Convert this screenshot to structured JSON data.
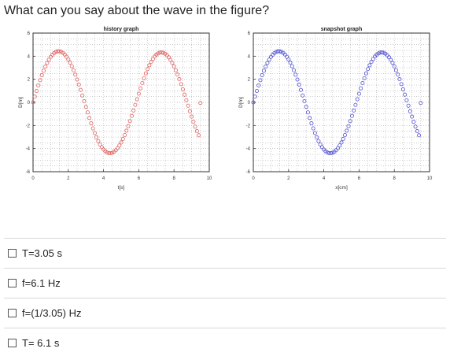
{
  "question": "What can you say about the wave in the figure?",
  "colors": {
    "history": "#e06060",
    "snapshot": "#5050d0"
  },
  "chart_data": [
    {
      "type": "scatter",
      "title": "history graph",
      "xlabel": "t[s]",
      "ylabel": "D[m]",
      "xlim": [
        0,
        10
      ],
      "ylim": [
        -6,
        6
      ],
      "xticks": [
        "0",
        "2",
        "4",
        "6",
        "8",
        "10"
      ],
      "yticks": [
        "6",
        "4",
        "2",
        "0",
        "-2",
        "-4",
        "-6"
      ],
      "grid": true,
      "series": [
        {
          "color": "#e06060",
          "x": [
            0,
            0.1,
            0.2,
            0.3,
            0.4,
            0.5,
            0.6,
            0.7,
            0.8,
            0.9,
            1,
            1.1,
            1.2,
            1.3,
            1.4,
            1.5,
            1.6,
            1.7,
            1.8,
            1.9,
            2,
            2.1,
            2.2,
            2.3,
            2.4,
            2.5,
            2.6,
            2.7,
            2.8,
            2.9,
            3,
            3.1,
            3.2,
            3.3,
            3.4,
            3.5,
            3.6,
            3.7,
            3.8,
            3.9,
            4,
            4.1,
            4.2,
            4.3,
            4.4,
            4.5,
            4.6,
            4.7,
            4.8,
            4.9,
            5,
            5.1,
            5.2,
            5.3,
            5.4,
            5.5,
            5.6,
            5.7,
            5.8,
            5.9,
            6,
            6.1,
            6.2,
            6.3,
            6.4,
            6.5,
            6.6,
            6.7,
            6.8,
            6.9,
            7,
            7.1,
            7.2,
            7.3,
            7.4,
            7.5,
            7.6,
            7.7,
            7.8,
            7.9,
            8,
            8.1,
            8.2,
            8.3,
            8.4,
            8.5,
            8.6,
            8.7,
            8.8,
            8.9,
            9,
            9.1,
            9.2,
            9.3,
            9.4,
            9.5
          ],
          "y": [
            0,
            0.5,
            0.99,
            1.47,
            1.92,
            2.35,
            2.74,
            3.1,
            3.42,
            3.7,
            3.94,
            4.13,
            4.27,
            4.37,
            4.42,
            4.42,
            4.37,
            4.28,
            4.14,
            3.95,
            3.72,
            3.45,
            3.13,
            2.78,
            2.4,
            1.98,
            1.54,
            1.08,
            0.6,
            0.1,
            -0.38,
            -0.87,
            -1.35,
            -1.81,
            -2.25,
            -2.65,
            -3.02,
            -3.35,
            -3.64,
            -3.88,
            -4.08,
            -4.23,
            -4.34,
            -4.39,
            -4.4,
            -4.36,
            -4.27,
            -4.14,
            -3.96,
            -3.73,
            -3.47,
            -3.17,
            -2.83,
            -2.45,
            -2.05,
            -1.62,
            -1.17,
            -0.7,
            -0.22,
            0.27,
            0.75,
            1.22,
            1.67,
            2.1,
            2.51,
            2.88,
            3.21,
            3.51,
            3.76,
            3.97,
            4.13,
            4.24,
            4.31,
            4.32,
            4.29,
            4.21,
            4.08,
            3.9,
            3.68,
            3.42,
            3.12,
            2.78,
            2.41,
            2.01,
            1.58,
            1.13,
            0.67,
            0.19,
            -0.29,
            -0.77,
            -1.23,
            -1.68,
            -2.1,
            -2.49,
            -2.85,
            -0.05
          ]
        }
      ]
    },
    {
      "type": "scatter",
      "title": "snapshot graph",
      "xlabel": "x[cm]",
      "ylabel": "D[m]",
      "xlim": [
        0,
        10
      ],
      "ylim": [
        -6,
        6
      ],
      "xticks": [
        "0",
        "2",
        "4",
        "6",
        "8",
        "10"
      ],
      "yticks": [
        "6",
        "4",
        "2",
        "0",
        "-2",
        "-4",
        "-6"
      ],
      "grid": true,
      "series": [
        {
          "color": "#5050d0",
          "x": [
            0,
            0.1,
            0.2,
            0.3,
            0.4,
            0.5,
            0.6,
            0.7,
            0.8,
            0.9,
            1,
            1.1,
            1.2,
            1.3,
            1.4,
            1.5,
            1.6,
            1.7,
            1.8,
            1.9,
            2,
            2.1,
            2.2,
            2.3,
            2.4,
            2.5,
            2.6,
            2.7,
            2.8,
            2.9,
            3,
            3.1,
            3.2,
            3.3,
            3.4,
            3.5,
            3.6,
            3.7,
            3.8,
            3.9,
            4,
            4.1,
            4.2,
            4.3,
            4.4,
            4.5,
            4.6,
            4.7,
            4.8,
            4.9,
            5,
            5.1,
            5.2,
            5.3,
            5.4,
            5.5,
            5.6,
            5.7,
            5.8,
            5.9,
            6,
            6.1,
            6.2,
            6.3,
            6.4,
            6.5,
            6.6,
            6.7,
            6.8,
            6.9,
            7,
            7.1,
            7.2,
            7.3,
            7.4,
            7.5,
            7.6,
            7.7,
            7.8,
            7.9,
            8,
            8.1,
            8.2,
            8.3,
            8.4,
            8.5,
            8.6,
            8.7,
            8.8,
            8.9,
            9,
            9.1,
            9.2,
            9.3,
            9.4,
            9.5
          ],
          "y": [
            0,
            0.5,
            0.99,
            1.47,
            1.92,
            2.35,
            2.74,
            3.1,
            3.42,
            3.7,
            3.94,
            4.13,
            4.27,
            4.37,
            4.42,
            4.42,
            4.37,
            4.28,
            4.14,
            3.95,
            3.72,
            3.45,
            3.13,
            2.78,
            2.4,
            1.98,
            1.54,
            1.08,
            0.6,
            0.1,
            -0.38,
            -0.87,
            -1.35,
            -1.81,
            -2.25,
            -2.65,
            -3.02,
            -3.35,
            -3.64,
            -3.88,
            -4.08,
            -4.23,
            -4.34,
            -4.39,
            -4.4,
            -4.36,
            -4.27,
            -4.14,
            -3.96,
            -3.73,
            -3.47,
            -3.17,
            -2.83,
            -2.45,
            -2.05,
            -1.62,
            -1.17,
            -0.7,
            -0.22,
            0.27,
            0.75,
            1.22,
            1.67,
            2.1,
            2.51,
            2.88,
            3.21,
            3.51,
            3.76,
            3.97,
            4.13,
            4.24,
            4.31,
            4.32,
            4.29,
            4.21,
            4.08,
            3.9,
            3.68,
            3.42,
            3.12,
            2.78,
            2.41,
            2.01,
            1.58,
            1.13,
            0.67,
            0.19,
            -0.29,
            -0.77,
            -1.23,
            -1.68,
            -2.1,
            -2.49,
            -2.85,
            -0.05
          ]
        }
      ]
    }
  ],
  "options": [
    {
      "label": "T=3.05 s"
    },
    {
      "label": "f=6.1 Hz"
    },
    {
      "label": "f=(1/3.05) Hz"
    },
    {
      "label": "T= 6.1 s"
    }
  ]
}
